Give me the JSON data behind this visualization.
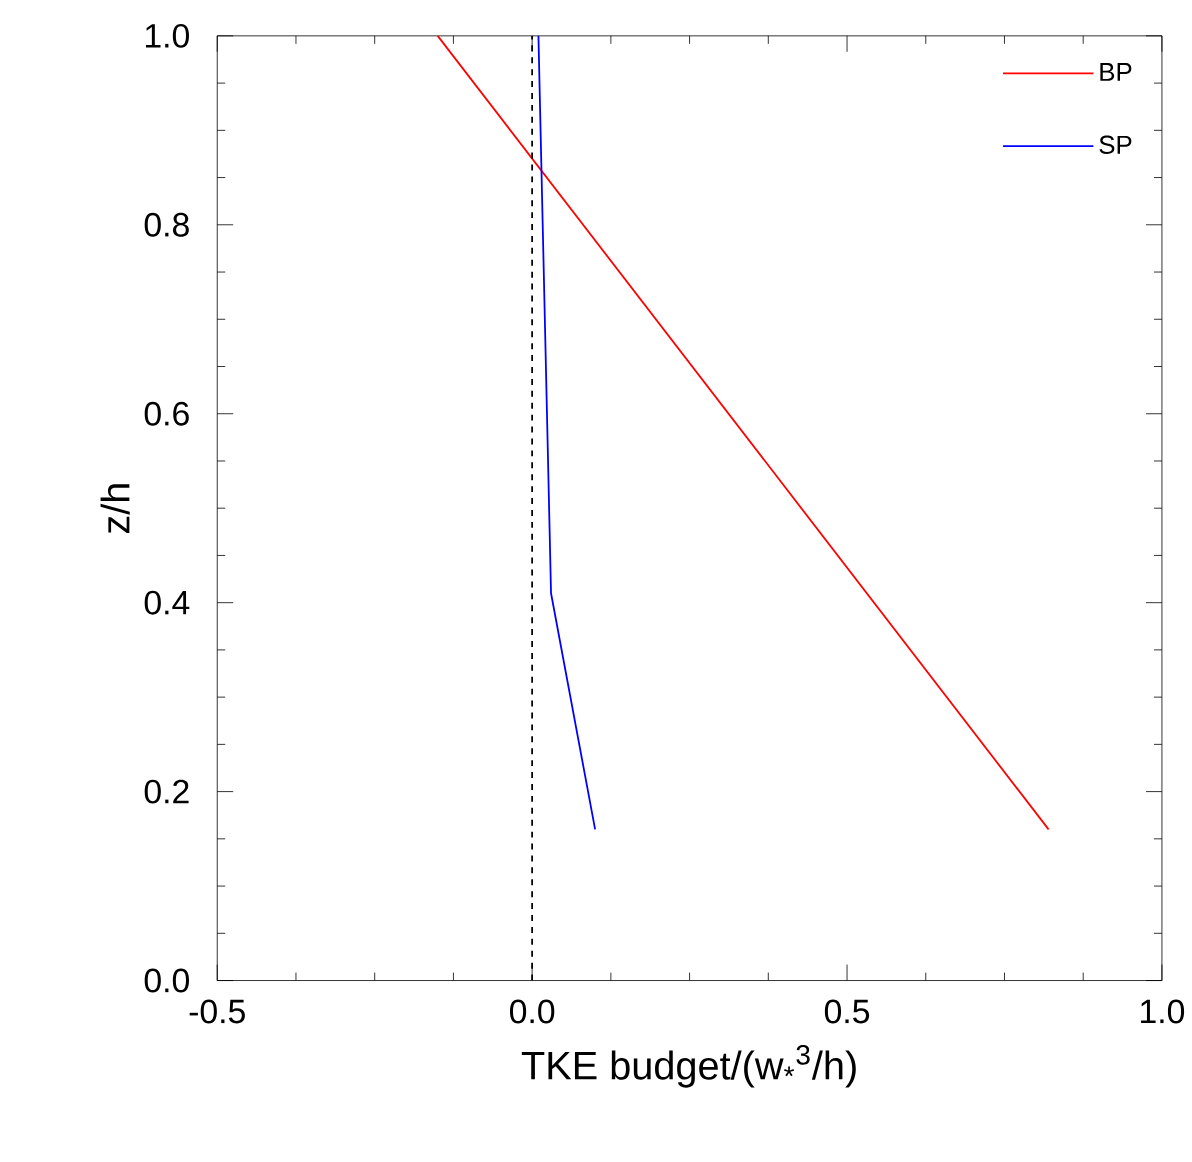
{
  "chart_data": {
    "type": "line",
    "xlabel": "TKE budget/(w$_{*}$$^{3}$/h)",
    "ylabel": "z/h",
    "series": [
      {
        "name": "BP",
        "color": "#ff0000",
        "x": [
          -0.15,
          0.82
        ],
        "values": [
          1.0,
          0.16
        ]
      },
      {
        "name": "SP",
        "color": "#0000ff",
        "x": [
          0.01,
          0.03,
          0.1
        ],
        "values": [
          1.0,
          0.41,
          0.16
        ]
      }
    ],
    "xlim": [
      -0.5,
      1.0
    ],
    "ylim": [
      0.0,
      1.0
    ],
    "xticks": [
      -0.5,
      {
        "value": 0,
        "label": "0.0"
      },
      0.5,
      {
        "value": 1,
        "label": "1.0"
      }
    ],
    "yticks": [
      {
        "value": 0,
        "label": "0.0"
      },
      0.2,
      0.4,
      0.6,
      0.8,
      {
        "value": 1,
        "label": "1.0"
      }
    ],
    "ref_lines": [
      {
        "axis": "x",
        "value": 0,
        "color": "#000000",
        "line_style": "dashed"
      }
    ],
    "legend": "top right",
    "grid": false,
    "marker": "none",
    "line_style": "solid"
  }
}
